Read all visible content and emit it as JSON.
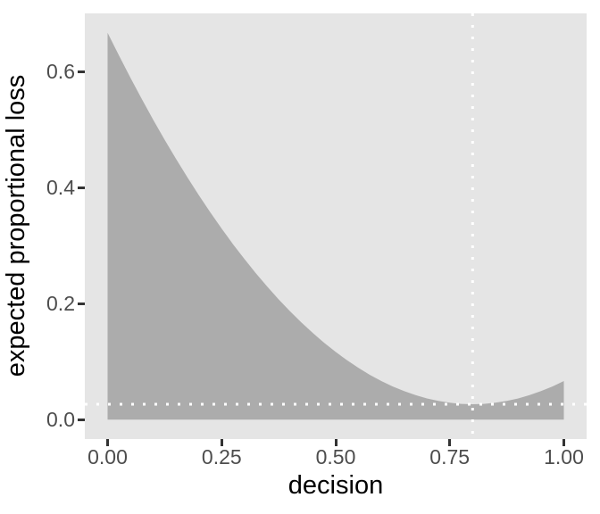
{
  "chart_data": {
    "type": "area",
    "title": "",
    "xlabel": "decision",
    "ylabel": "expected proportional loss",
    "x": [
      0,
      0.025,
      0.05,
      0.075,
      0.1,
      0.125,
      0.15,
      0.175,
      0.2,
      0.225,
      0.25,
      0.275,
      0.3,
      0.325,
      0.35,
      0.375,
      0.4,
      0.425,
      0.45,
      0.475,
      0.5,
      0.525,
      0.55,
      0.575,
      0.6,
      0.625,
      0.65,
      0.675,
      0.7,
      0.725,
      0.75,
      0.775,
      0.8,
      0.825,
      0.85,
      0.875,
      0.9,
      0.925,
      0.95,
      0.975,
      1.0
    ],
    "y": [
      0.6667,
      0.6273,
      0.5892,
      0.5523,
      0.5167,
      0.4823,
      0.4492,
      0.4173,
      0.3867,
      0.3573,
      0.3292,
      0.3023,
      0.2767,
      0.2523,
      0.2292,
      0.2073,
      0.1867,
      0.1673,
      0.1492,
      0.1323,
      0.1167,
      0.1023,
      0.0892,
      0.0773,
      0.0667,
      0.0573,
      0.0492,
      0.0423,
      0.0367,
      0.0323,
      0.0292,
      0.0273,
      0.0267,
      0.0273,
      0.0292,
      0.0323,
      0.0367,
      0.0423,
      0.0492,
      0.0573,
      0.0667
    ],
    "baseline": 0,
    "xlim": [
      -0.05,
      1.05
    ],
    "ylim": [
      -0.0333,
      0.7
    ],
    "x_tick_values": [
      0,
      0.25,
      0.5,
      0.75,
      1.0
    ],
    "x_tick_labels": [
      "0.00",
      "0.25",
      "0.50",
      "0.75",
      "1.00"
    ],
    "y_tick_values": [
      0,
      0.2,
      0.4,
      0.6
    ],
    "y_tick_labels": [
      "0.0",
      "0.2",
      "0.4",
      "0.6"
    ],
    "grid": "off",
    "legend": "none",
    "reference_lines": [
      {
        "orientation": "horizontal",
        "value": 0.0267,
        "linetype": "dotted",
        "color": "#FFFFFF"
      },
      {
        "orientation": "vertical",
        "value": 0.8,
        "linetype": "dotted",
        "color": "#FFFFFF"
      }
    ],
    "colors": {
      "panel_background": "#E5E5E5",
      "area_fill": "#ACACAC",
      "tick_mark": "#333333",
      "tick_label": "#4D4D4D",
      "axis_title": "#000000",
      "page_background": "#FFFFFF"
    }
  }
}
